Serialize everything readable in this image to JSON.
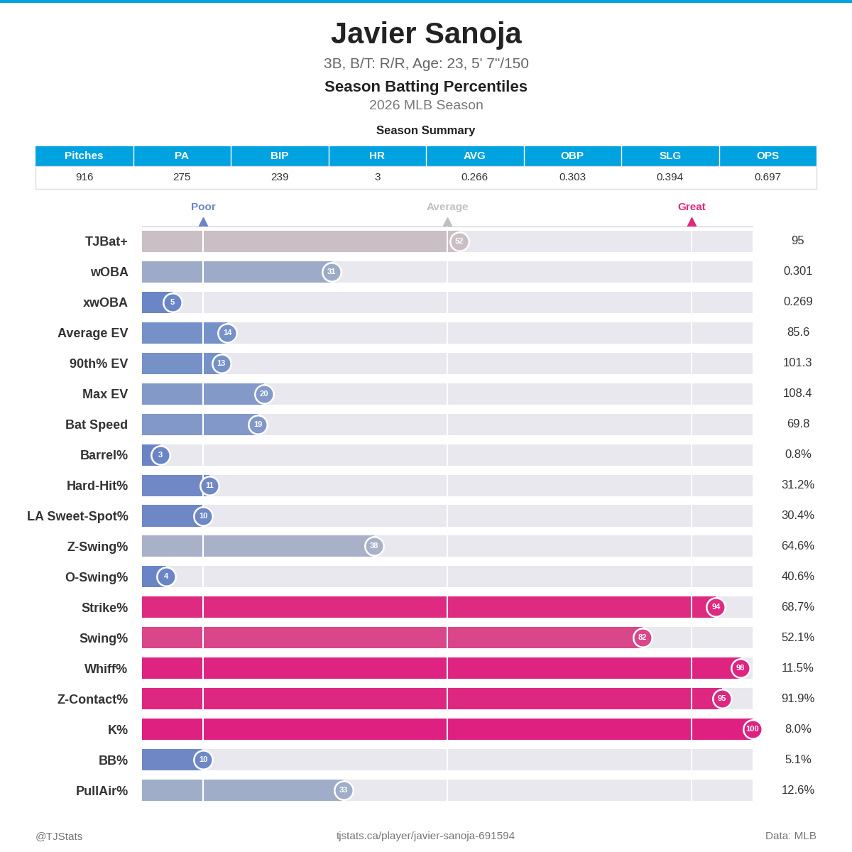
{
  "header": {
    "player": "Javier Sanoja",
    "bio": "3B, B/T: R/R, Age: 23, 5' 7\"/150",
    "title": "Season Batting Percentiles",
    "season": "2026 MLB Season"
  },
  "summary": {
    "title": "Season Summary",
    "columns": [
      "Pitches",
      "PA",
      "BIP",
      "HR",
      "AVG",
      "OBP",
      "SLG",
      "OPS"
    ],
    "rows": [
      [
        "916",
        "275",
        "239",
        "3",
        "0.266",
        "0.303",
        "0.394",
        "0.697"
      ]
    ]
  },
  "chart_data": {
    "type": "bar",
    "orientation": "horizontal",
    "categories": [
      "TJBat+",
      "wOBA",
      "xwOBA",
      "Average EV",
      "90th% EV",
      "Max EV",
      "Bat Speed",
      "Barrel%",
      "Hard-Hit%",
      "LA Sweet-Spot%",
      "Z-Swing%",
      "O-Swing%",
      "Strike%",
      "Swing%",
      "Whiff%",
      "Z-Contact%",
      "K%",
      "BB%",
      "PullAir%"
    ],
    "values": [
      52,
      31,
      5,
      14,
      13,
      20,
      19,
      3,
      11,
      10,
      38,
      4,
      94,
      82,
      98,
      95,
      100,
      10,
      33
    ],
    "colors": [
      "#c9bfc4",
      "#9dabc9",
      "#6b86c6",
      "#7690c8",
      "#7690c8",
      "#8399c8",
      "#8198c8",
      "#6a85c6",
      "#7089c6",
      "#6e88c6",
      "#a8b1c8",
      "#6a85c6",
      "#de2a80",
      "#d9478a",
      "#de2381",
      "#de2780",
      "#de2080",
      "#6e88c6",
      "#a0adc8"
    ],
    "stat_values": [
      "95",
      "0.301",
      "0.269",
      "85.6",
      "101.3",
      "108.4",
      "69.8",
      "0.8%",
      "31.2%",
      "30.4%",
      "64.6%",
      "40.6%",
      "68.7%",
      "52.1%",
      "11.5%",
      "91.9%",
      "8.0%",
      "5.1%",
      "12.6%"
    ],
    "data_labels": true,
    "xlim": [
      0,
      100
    ],
    "xticks": [
      {
        "value": 10,
        "label": "Poor"
      },
      {
        "value": 50,
        "label": "Average"
      },
      {
        "value": 90,
        "label": "Great"
      }
    ],
    "grid": true
  },
  "footer": {
    "left": "@TJStats",
    "center": "tjstats.ca/player/javier-sanoja-691594",
    "right": "Data: MLB"
  }
}
